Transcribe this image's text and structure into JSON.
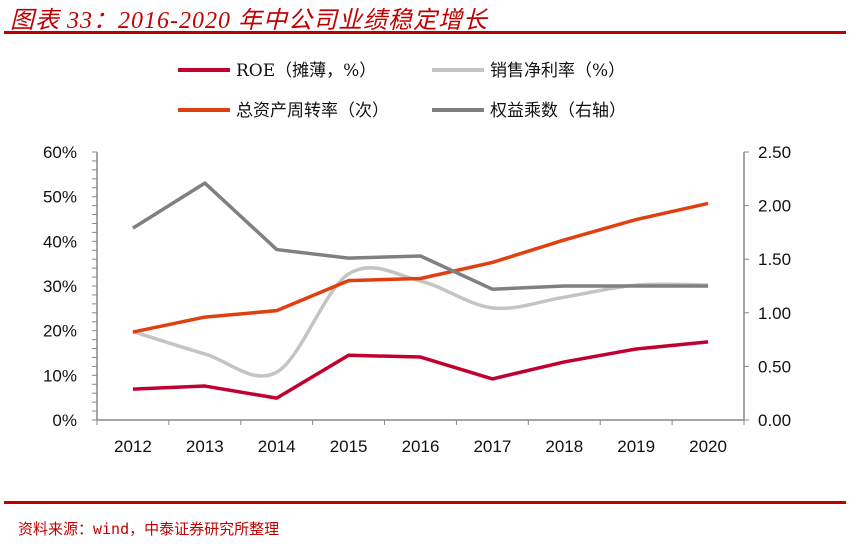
{
  "title": "图表 33：2016-2020 年中公司业绩稳定增长",
  "source": "资料来源：wind，中泰证券研究所整理",
  "chart_data": {
    "type": "line",
    "title": "",
    "categories": [
      "2012",
      "2013",
      "2014",
      "2015",
      "2016",
      "2017",
      "2018",
      "2019",
      "2020"
    ],
    "y_left": {
      "range": [
        0,
        60
      ],
      "ticks": [
        "0%",
        "10%",
        "20%",
        "30%",
        "40%",
        "50%",
        "60%"
      ]
    },
    "y_right": {
      "range": [
        0,
        2.5
      ],
      "ticks": [
        "0.00",
        "0.50",
        "1.00",
        "1.50",
        "2.00",
        "2.50"
      ]
    },
    "grid": false,
    "legend_position": "top",
    "series": [
      {
        "name": "ROE（摊薄，%）",
        "axis": "left",
        "color": "#c0002f",
        "smooth": false,
        "values": [
          6.9,
          7.6,
          4.9,
          14.5,
          14.1,
          9.2,
          13.0,
          15.9,
          17.5
        ]
      },
      {
        "name": "销售净利率（%）",
        "axis": "left",
        "color": "#c4c4c4",
        "smooth": true,
        "values": [
          19.8,
          14.8,
          10.7,
          32.7,
          31.1,
          25.1,
          27.5,
          30.2,
          30.2
        ]
      },
      {
        "name": "总资产周转率（次）",
        "axis": "right",
        "color": "#e04010",
        "smooth": false,
        "values": [
          0.82,
          0.96,
          1.02,
          1.3,
          1.32,
          1.47,
          1.68,
          1.87,
          2.02
        ]
      },
      {
        "name": "权益乘数（右轴）",
        "axis": "right",
        "color": "#808080",
        "smooth": false,
        "values": [
          1.79,
          2.21,
          1.59,
          1.51,
          1.53,
          1.22,
          1.25,
          1.25,
          1.25
        ]
      }
    ]
  }
}
